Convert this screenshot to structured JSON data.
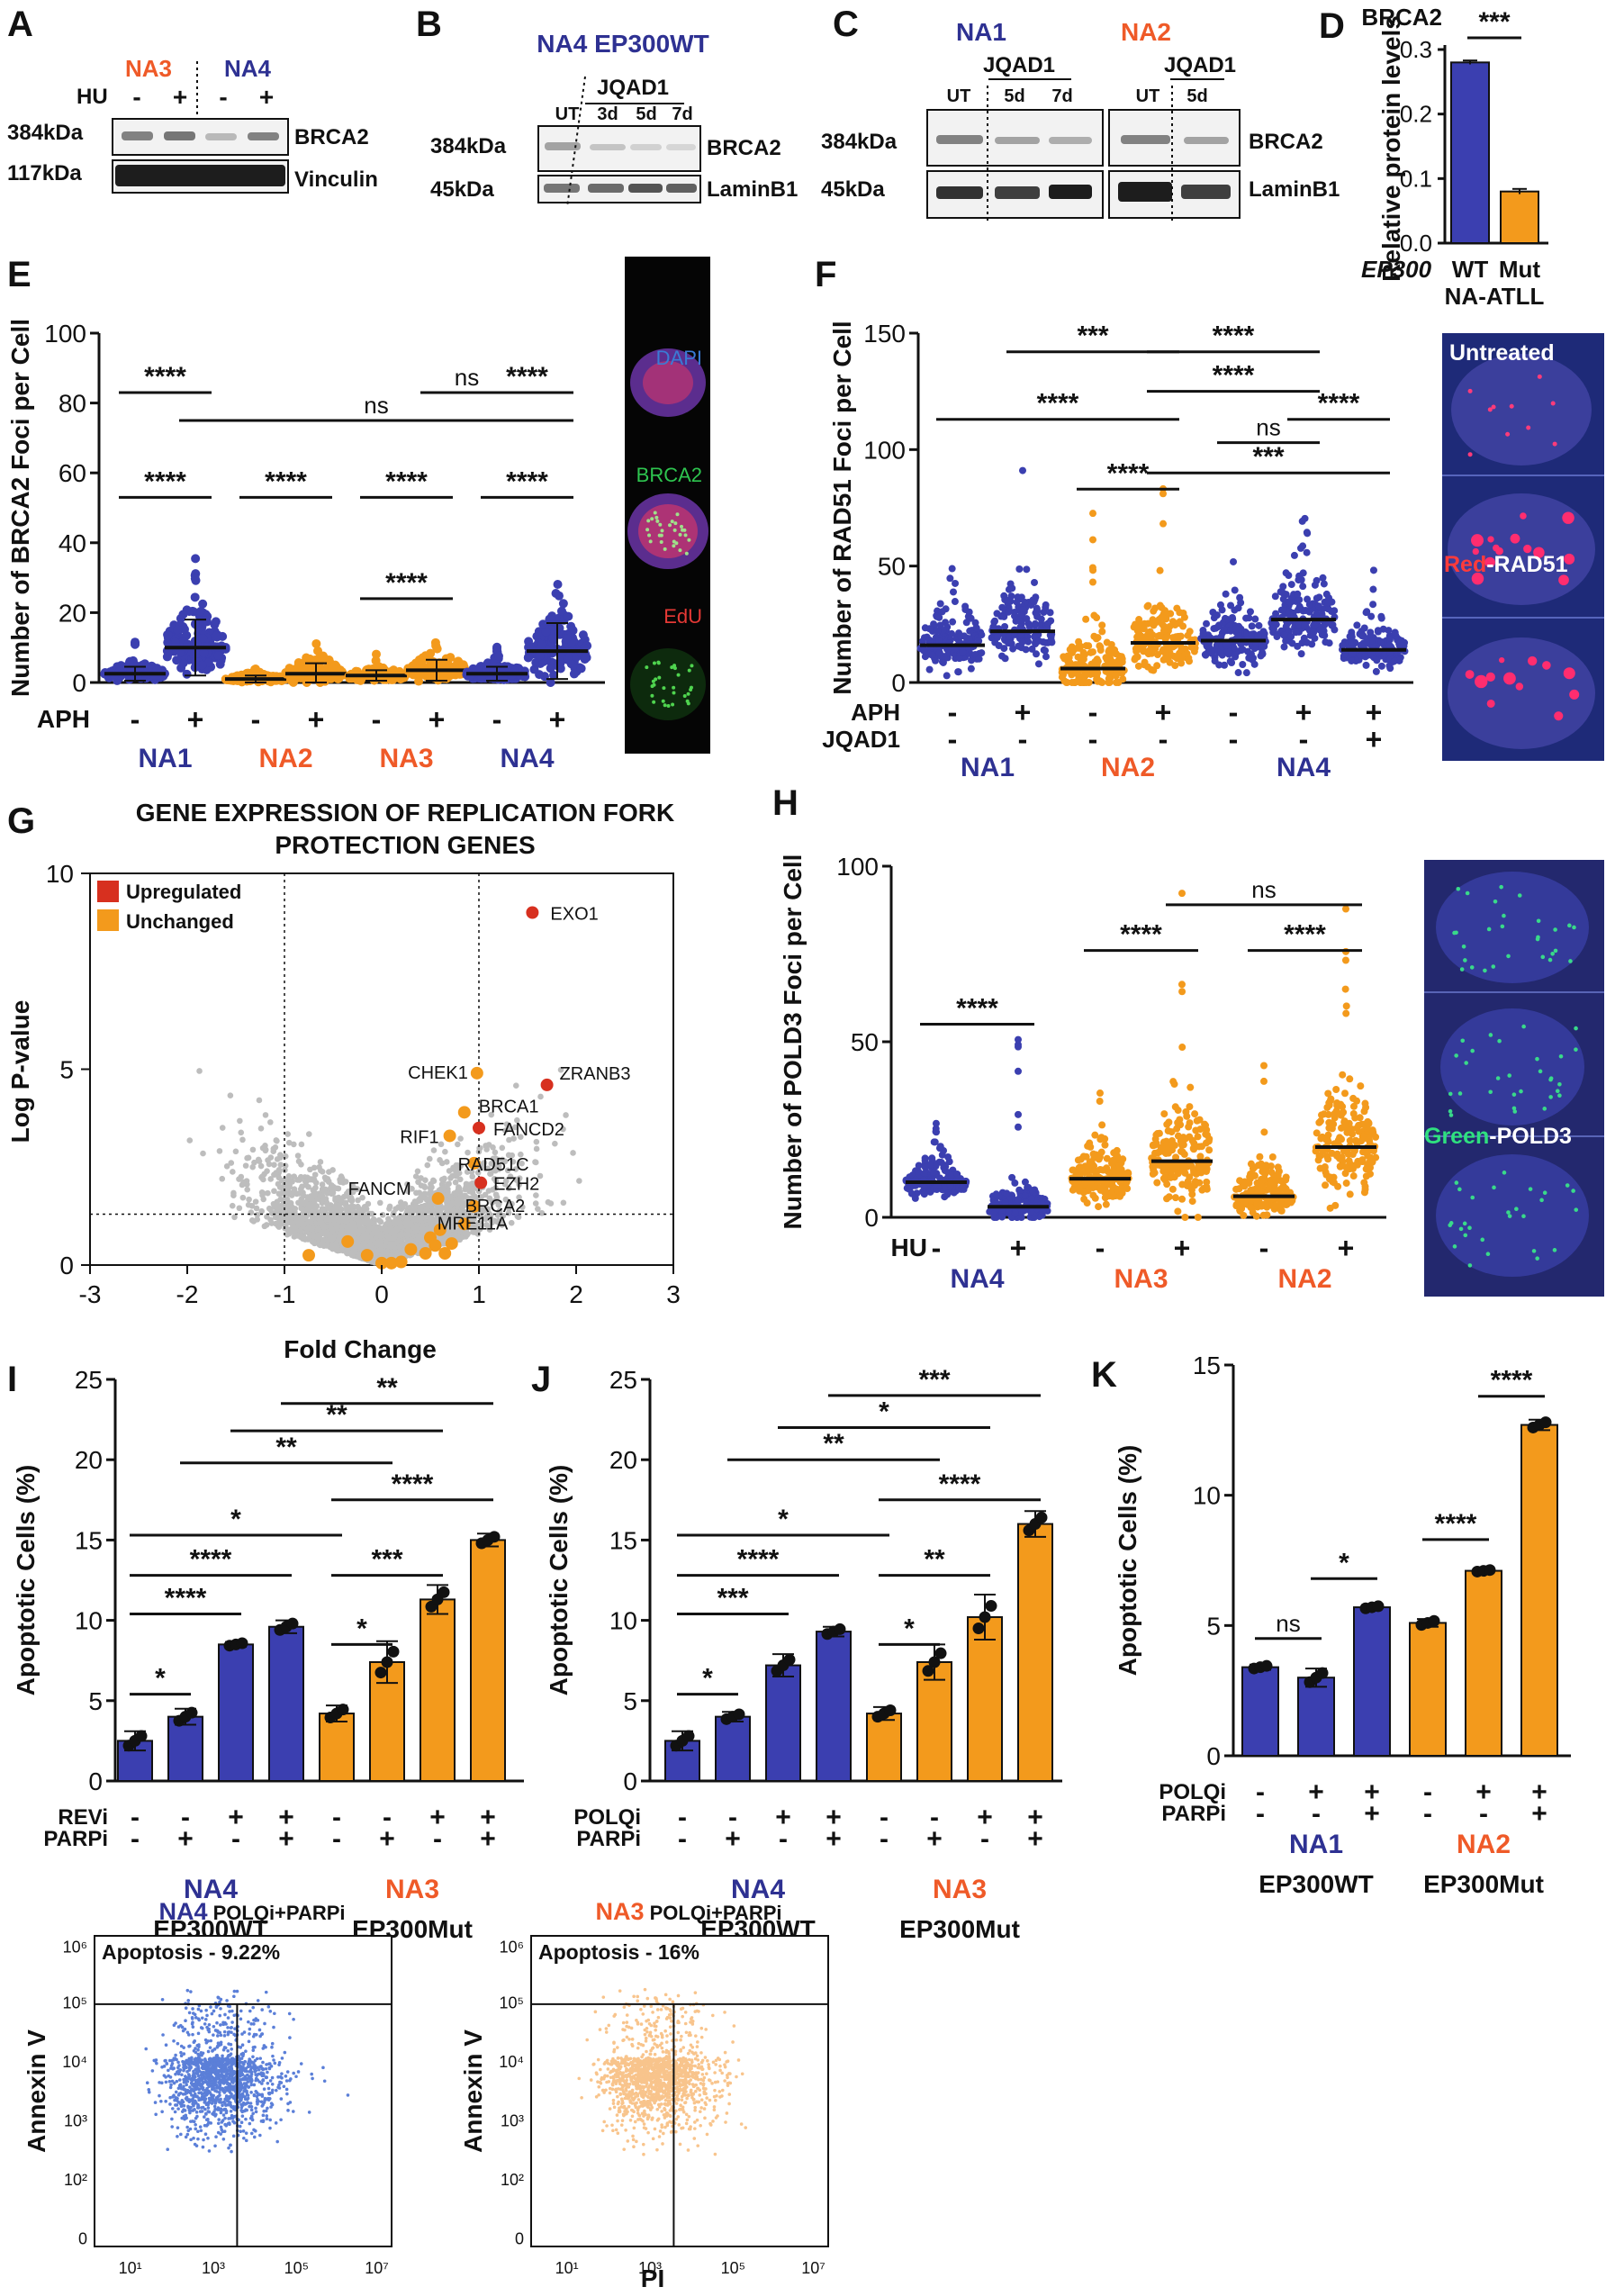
{
  "colors": {
    "blue": "#3b3fb0",
    "orange": "#f39a1c",
    "red": "#d7301f",
    "grey": "#bdbdbd",
    "navy": "#2e3192",
    "orangeText": "#ef5a28"
  },
  "panelA": {
    "letter": "A",
    "cellA": "NA3",
    "cellB": "NA4",
    "treat": "HU",
    "minus": "-",
    "plus": "+",
    "mw1": "384kDa",
    "mw2": "117kDa",
    "prot1": "BRCA2",
    "prot2": "Vinculin"
  },
  "panelB": {
    "letter": "B",
    "title": "NA4 EP300WT",
    "drug": "JQAD1",
    "lanes": [
      "UT",
      "3d",
      "5d",
      "7d"
    ],
    "mw1": "384kDa",
    "mw2": "45kDa",
    "prot1": "BRCA2",
    "prot2": "LaminB1"
  },
  "panelC": {
    "letter": "C",
    "cellA": "NA1",
    "cellB": "NA2",
    "drugA": "JQAD1",
    "drugB": "JQAD1",
    "lanesA": [
      "UT",
      "5d",
      "7d"
    ],
    "lanesB": [
      "UT",
      "5d"
    ],
    "mw1": "384kDa",
    "mw2": "45kDa",
    "prot1": "BRCA2",
    "prot2": "LaminB1"
  },
  "panelE": {
    "letter": "E",
    "micro": [
      "DAPI",
      "BRCA2",
      "EdU"
    ]
  },
  "panelF": {
    "letter": "F",
    "micro": [
      "Untreated",
      "Red",
      "-RAD51"
    ]
  },
  "panelG": {
    "letter": "G",
    "micro": []
  },
  "panelH": {
    "letter": "H",
    "micro": [
      "Green",
      "-POLD3"
    ]
  },
  "panelI": {
    "letter": "I"
  },
  "panelJ": {
    "letter": "J"
  },
  "panelK": {
    "letter": "K"
  },
  "flow": {
    "left": {
      "cell": "NA4",
      "treat": "POLQi+PARPi",
      "label": "Apoptosis - 9.22%"
    },
    "right": {
      "cell": "NA3",
      "treat": "POLQi+PARPi",
      "label": "Apoptosis - 16%"
    },
    "ylabel": "Annexin V",
    "xlabel": "PI",
    "yticks": [
      "0",
      "10²",
      "10³",
      "10⁴",
      "10⁵",
      "10⁶"
    ],
    "xticks": [
      "10¹",
      "10³",
      "10⁵",
      "10⁷"
    ]
  },
  "chart_data": [
    {
      "id": "D",
      "type": "bar",
      "title": "BRCA2",
      "ylabel": "Relative protein levels",
      "xlabel_prefix": "EP300",
      "xsub": "NA-ATLL",
      "categories": [
        "WT",
        "Mut"
      ],
      "values": [
        0.28,
        0.08
      ],
      "errors": [
        0.003,
        0.004
      ],
      "ylim": [
        0,
        0.3
      ],
      "yticks": [
        0.0,
        0.1,
        0.2,
        0.3
      ],
      "sig": "***"
    },
    {
      "id": "E",
      "type": "scatter",
      "ylabel": "Number of BRCA2 Foci per Cell",
      "ylim": [
        0,
        100
      ],
      "yticks": [
        0,
        20,
        40,
        60,
        80,
        100
      ],
      "rows": [
        {
          "name": "APH",
          "values": [
            "-",
            "+",
            "-",
            "+",
            "-",
            "+",
            "-",
            "+"
          ]
        }
      ],
      "groups": [
        "NA1",
        "NA2",
        "NA3",
        "NA4"
      ],
      "series": [
        {
          "group": "NA1",
          "treat": "-",
          "mean": 2.5,
          "sd": 2,
          "max": 12
        },
        {
          "group": "NA1",
          "treat": "+",
          "mean": 10,
          "sd": 8,
          "max": 44
        },
        {
          "group": "NA2",
          "treat": "-",
          "mean": 1,
          "sd": 1,
          "max": 6
        },
        {
          "group": "NA2",
          "treat": "+",
          "mean": 2.5,
          "sd": 3,
          "max": 14
        },
        {
          "group": "NA3",
          "treat": "-",
          "mean": 2,
          "sd": 1.5,
          "max": 9
        },
        {
          "group": "NA3",
          "treat": "+",
          "mean": 3.5,
          "sd": 3,
          "max": 13
        },
        {
          "group": "NA4",
          "treat": "-",
          "mean": 2.5,
          "sd": 2,
          "max": 11
        },
        {
          "group": "NA4",
          "treat": "+",
          "mean": 9,
          "sd": 8,
          "max": 30
        }
      ],
      "annotations": [
        {
          "text": "****",
          "from": 0,
          "to": 1,
          "y": 83
        },
        {
          "text": "ns",
          "from": 5,
          "to": 6,
          "y": 83
        },
        {
          "text": "****",
          "from": 6,
          "to": 7,
          "y": 83
        },
        {
          "text": "ns",
          "from": 1,
          "to": 7,
          "y": 75
        },
        {
          "text": "****",
          "from": 0,
          "to": 1,
          "y": 53
        },
        {
          "text": "****",
          "from": 2,
          "to": 3,
          "y": 53
        },
        {
          "text": "****",
          "from": 4,
          "to": 5,
          "y": 53
        },
        {
          "text": "****",
          "from": 6,
          "to": 7,
          "y": 53
        },
        {
          "text": "****",
          "from": 4,
          "to": 5,
          "y": 24
        }
      ]
    },
    {
      "id": "F",
      "type": "scatter",
      "ylabel": "Number of RAD51 Foci per Cell",
      "ylim": [
        0,
        150
      ],
      "yticks": [
        0,
        50,
        100,
        150
      ],
      "rows": [
        {
          "name": "APH",
          "values": [
            "-",
            "+",
            "-",
            "+",
            "-",
            "+",
            "+"
          ]
        },
        {
          "name": "JQAD1",
          "values": [
            "-",
            "-",
            "-",
            "-",
            "-",
            "-",
            "+"
          ]
        }
      ],
      "groups": [
        "NA1",
        "NA2",
        "NA4"
      ],
      "series": [
        {
          "group": "NA1",
          "treat": "APH-",
          "mean": 16,
          "sd": 12,
          "max": 72
        },
        {
          "group": "NA1",
          "treat": "APH+",
          "mean": 22,
          "sd": 14,
          "max": 93
        },
        {
          "group": "NA2",
          "treat": "APH-",
          "mean": 6,
          "sd": 12,
          "max": 80
        },
        {
          "group": "NA2",
          "treat": "APH+",
          "mean": 17,
          "sd": 14,
          "max": 92
        },
        {
          "group": "NA4",
          "treat": "APH-",
          "mean": 18,
          "sd": 12,
          "max": 57
        },
        {
          "group": "NA4",
          "treat": "APH+",
          "mean": 27,
          "sd": 18,
          "max": 110
        },
        {
          "group": "NA4",
          "treat": "APH+JQAD1+",
          "mean": 14,
          "sd": 9,
          "max": 53
        }
      ],
      "annotations": [
        {
          "text": "***",
          "from": 1,
          "to": 3,
          "y": 142
        },
        {
          "text": "****",
          "from": 3,
          "to": 5,
          "y": 142
        },
        {
          "text": "****",
          "from": 3,
          "to": 5,
          "y": 125
        },
        {
          "text": "****",
          "from": 0,
          "to": 3,
          "y": 113
        },
        {
          "text": "ns",
          "from": 4,
          "to": 5,
          "y": 103
        },
        {
          "text": "****",
          "from": 5,
          "to": 6,
          "y": 113
        },
        {
          "text": "****",
          "from": 2,
          "to": 3,
          "y": 83
        },
        {
          "text": "***",
          "from": 3,
          "to": 6,
          "y": 90
        }
      ]
    },
    {
      "id": "G",
      "type": "scatter",
      "title": "GENE EXPRESSION OF REPLICATION FORK PROTECTION GENES",
      "title_lines": [
        "GENE EXPRESSION OF REPLICATION FORK",
        "PROTECTION GENES"
      ],
      "xlabel": "Fold Change",
      "ylabel": "Log P-value",
      "xlim": [
        -3,
        3
      ],
      "ylim": [
        0,
        10
      ],
      "xticks": [
        -3,
        -2,
        -1,
        0,
        1,
        2,
        3
      ],
      "yticks": [
        0,
        5,
        10
      ],
      "legend": [
        {
          "label": "Upregulated",
          "color": "red"
        },
        {
          "label": "Unchanged",
          "color": "orange"
        }
      ],
      "thresholds": {
        "x": [
          -1,
          1
        ],
        "y": 1.3
      },
      "labeled_points": [
        {
          "gene": "EXO1",
          "x": 1.55,
          "y": 9.0,
          "status": "up"
        },
        {
          "gene": "ZRANB3",
          "x": 1.7,
          "y": 4.6,
          "status": "up"
        },
        {
          "gene": "CHEK1",
          "x": 0.98,
          "y": 4.9,
          "status": "unchanged"
        },
        {
          "gene": "BRCA1",
          "x": 0.85,
          "y": 3.9,
          "status": "unchanged"
        },
        {
          "gene": "RIF1",
          "x": 0.7,
          "y": 3.3,
          "status": "unchanged"
        },
        {
          "gene": "FANCD2",
          "x": 1.0,
          "y": 3.5,
          "status": "up"
        },
        {
          "gene": "RAD51C",
          "x": 0.95,
          "y": 2.6,
          "status": "unchanged"
        },
        {
          "gene": "EZH2",
          "x": 1.02,
          "y": 2.1,
          "status": "up"
        },
        {
          "gene": "FANCM",
          "x": 0.58,
          "y": 1.7,
          "status": "unchanged"
        },
        {
          "gene": "BRCA2",
          "x": 0.95,
          "y": 1.5,
          "status": "unchanged"
        },
        {
          "gene": "MRE11A",
          "x": 0.85,
          "y": 1.05,
          "status": "unchanged"
        }
      ],
      "other_orange": [
        [
          -0.75,
          0.25
        ],
        [
          -0.35,
          0.6
        ],
        [
          -0.15,
          0.25
        ],
        [
          0.0,
          0.05
        ],
        [
          0.1,
          0.05
        ],
        [
          0.2,
          0.08
        ],
        [
          0.3,
          0.4
        ],
        [
          0.45,
          0.3
        ],
        [
          0.5,
          0.7
        ],
        [
          0.55,
          0.5
        ],
        [
          0.6,
          0.9
        ],
        [
          0.65,
          0.3
        ],
        [
          0.72,
          0.55
        ]
      ]
    },
    {
      "id": "H",
      "type": "scatter",
      "ylabel": "Number of POLD3 Foci per Cell",
      "ylim": [
        0,
        100
      ],
      "yticks": [
        0,
        50,
        100
      ],
      "rows": [
        {
          "name": "HU",
          "values": [
            "-",
            "+",
            "-",
            "+",
            "-",
            "+"
          ]
        }
      ],
      "groups": [
        "NA4",
        "NA3",
        "NA2"
      ],
      "series": [
        {
          "group": "NA4",
          "treat": "-",
          "mean": 10,
          "sd": 5,
          "max": 27
        },
        {
          "group": "NA4",
          "treat": "+",
          "mean": 3,
          "sd": 5,
          "max": 53
        },
        {
          "group": "NA3",
          "treat": "-",
          "mean": 11,
          "sd": 7,
          "max": 38
        },
        {
          "group": "NA3",
          "treat": "+",
          "mean": 16,
          "sd": 14,
          "max": 95
        },
        {
          "group": "NA2",
          "treat": "-",
          "mean": 6,
          "sd": 7,
          "max": 45
        },
        {
          "group": "NA2",
          "treat": "+",
          "mean": 20,
          "sd": 15,
          "max": 100
        }
      ],
      "annotations": [
        {
          "text": "ns",
          "from": 3,
          "to": 5,
          "y": 89
        },
        {
          "text": "****",
          "from": 0,
          "to": 1,
          "y": 55
        },
        {
          "text": "****",
          "from": 2,
          "to": 3,
          "y": 76
        },
        {
          "text": "****",
          "from": 4,
          "to": 5,
          "y": 76
        }
      ]
    },
    {
      "id": "I",
      "type": "bar",
      "ylabel": "Apoptotic Cells (%)",
      "xtitle": "Fold Change",
      "ylim": [
        0,
        25
      ],
      "yticks": [
        0,
        5,
        10,
        15,
        20,
        25
      ],
      "rows": [
        {
          "name": "REVi",
          "values": [
            "-",
            "-",
            "+",
            "+",
            "-",
            "-",
            "+",
            "+"
          ]
        },
        {
          "name": "PARPi",
          "values": [
            "-",
            "+",
            "-",
            "+",
            "-",
            "+",
            "-",
            "+"
          ]
        }
      ],
      "groups": [
        {
          "name": "NA4",
          "sub": "EP300WT"
        },
        {
          "name": "NA3",
          "sub": "EP300Mut"
        }
      ],
      "values": [
        2.5,
        4.0,
        8.5,
        9.6,
        4.2,
        7.4,
        11.3,
        15.0
      ],
      "errors": [
        0.6,
        0.5,
        0.15,
        0.4,
        0.5,
        1.3,
        0.9,
        0.4
      ],
      "annotations": [
        {
          "text": "**",
          "from": 3,
          "to": 7,
          "y": 23.5
        },
        {
          "text": "**",
          "from": 2,
          "to": 6,
          "y": 21.8
        },
        {
          "text": "**",
          "from": 1,
          "to": 5,
          "y": 19.8
        },
        {
          "text": "****",
          "from": 4,
          "to": 7,
          "y": 17.5
        },
        {
          "text": "*",
          "from": 0,
          "to": 4,
          "y": 15.3
        },
        {
          "text": "****",
          "from": 0,
          "to": 3,
          "y": 12.8
        },
        {
          "text": "***",
          "from": 4,
          "to": 6,
          "y": 12.8
        },
        {
          "text": "****",
          "from": 0,
          "to": 2,
          "y": 10.4
        },
        {
          "text": "*",
          "from": 4,
          "to": 5,
          "y": 8.5
        },
        {
          "text": "*",
          "from": 0,
          "to": 1,
          "y": 5.4
        }
      ]
    },
    {
      "id": "J",
      "type": "bar",
      "ylabel": "Apoptotic Cells (%)",
      "ylim": [
        0,
        25
      ],
      "yticks": [
        0,
        5,
        10,
        15,
        20,
        25
      ],
      "rows": [
        {
          "name": "POLQi",
          "values": [
            "-",
            "-",
            "+",
            "+",
            "-",
            "-",
            "+",
            "+"
          ]
        },
        {
          "name": "PARPi",
          "values": [
            "-",
            "+",
            "-",
            "+",
            "-",
            "+",
            "-",
            "+"
          ]
        }
      ],
      "groups": [
        {
          "name": "NA4",
          "sub": "EP300WT"
        },
        {
          "name": "NA3",
          "sub": "EP300Mut"
        }
      ],
      "values": [
        2.5,
        4.0,
        7.2,
        9.3,
        4.2,
        7.4,
        10.2,
        16.0
      ],
      "errors": [
        0.6,
        0.3,
        0.7,
        0.3,
        0.4,
        1.1,
        1.4,
        0.8
      ],
      "annotations": [
        {
          "text": "***",
          "from": 3,
          "to": 7,
          "y": 24.0
        },
        {
          "text": "*",
          "from": 2,
          "to": 6,
          "y": 22.0
        },
        {
          "text": "**",
          "from": 1,
          "to": 5,
          "y": 20.0
        },
        {
          "text": "****",
          "from": 4,
          "to": 7,
          "y": 17.5
        },
        {
          "text": "*",
          "from": 0,
          "to": 4,
          "y": 15.3
        },
        {
          "text": "****",
          "from": 0,
          "to": 3,
          "y": 12.8
        },
        {
          "text": "**",
          "from": 4,
          "to": 6,
          "y": 12.8
        },
        {
          "text": "***",
          "from": 0,
          "to": 2,
          "y": 10.4
        },
        {
          "text": "*",
          "from": 4,
          "to": 5,
          "y": 8.5
        },
        {
          "text": "*",
          "from": 0,
          "to": 1,
          "y": 5.4
        }
      ]
    },
    {
      "id": "K",
      "type": "bar",
      "ylabel": "Apoptotic Cells (%)",
      "ylim": [
        0,
        15
      ],
      "yticks": [
        0,
        5,
        10,
        15
      ],
      "rows": [
        {
          "name": "POLQi",
          "values": [
            "-",
            "+",
            "+",
            "-",
            "+",
            "+"
          ]
        },
        {
          "name": "PARPi",
          "values": [
            "-",
            "-",
            "+",
            "-",
            "-",
            "+"
          ]
        }
      ],
      "groups": [
        {
          "name": "NA1",
          "sub": "EP300WT"
        },
        {
          "name": "NA2",
          "sub": "EP300Mut"
        }
      ],
      "values": [
        3.4,
        3.0,
        5.7,
        5.1,
        7.1,
        12.7
      ],
      "errors": [
        0.1,
        0.35,
        0.08,
        0.15,
        0.06,
        0.2
      ],
      "annotations": [
        {
          "text": "ns",
          "from": 0,
          "to": 1,
          "y": 4.5
        },
        {
          "text": "*",
          "from": 1,
          "to": 2,
          "y": 6.8
        },
        {
          "text": "****",
          "from": 3,
          "to": 4,
          "y": 8.3
        },
        {
          "text": "****",
          "from": 4,
          "to": 5,
          "y": 13.8
        }
      ]
    }
  ]
}
